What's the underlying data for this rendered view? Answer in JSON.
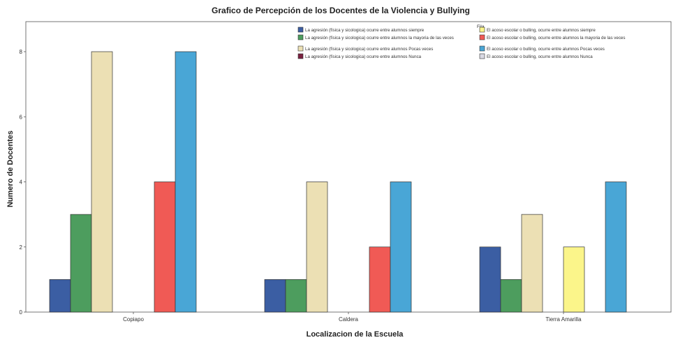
{
  "chart_data": {
    "type": "bar",
    "title": "Grafico de Percepción de los Docentes de la Violencia y Bullying",
    "xlabel": "Localizacion de la Escuela",
    "ylabel": "Numero de Docentes",
    "ylim": [
      0,
      8
    ],
    "yticks": [
      0,
      2,
      4,
      6,
      8
    ],
    "categories": [
      "Copiapo",
      "Caldera",
      "Tierra Amarilla"
    ],
    "legend_title": "Fila",
    "legend_position": "top-right",
    "grid": false,
    "series": [
      {
        "name": "La agresión (física y sicologica) ocurre entre alumnos siempre",
        "color": "#3b5ea3",
        "values": [
          1,
          1,
          2
        ]
      },
      {
        "name": "La agresión (física y sicologica) ocurre entre alumnos la mayoria de las veces",
        "color": "#4d9d5e",
        "values": [
          3,
          1,
          1
        ]
      },
      {
        "name": "La agresión (física y sicologica) ocurre entre alumnos Pocas veces",
        "color": "#ece0b4",
        "values": [
          8,
          4,
          3
        ]
      },
      {
        "name": "La agresión (física y sicologica) ocurre entre alumnos Nunca",
        "color": "#7a2140",
        "values": [
          0,
          0,
          0
        ]
      },
      {
        "name": "El acoso escolar o bulling, ocurre entre alumnos siempre",
        "color": "#fbf58a",
        "values": [
          0,
          0,
          2
        ]
      },
      {
        "name": "El acoso escolar o bulling, ocurre entre alumnos la mayoria de las veces",
        "color": "#f05a55",
        "values": [
          4,
          2,
          0
        ]
      },
      {
        "name": "El acoso escolar o bulling, ocurre entre alumnos Pocas veces",
        "color": "#49a6d6",
        "values": [
          8,
          4,
          4
        ]
      },
      {
        "name": "El acoso escolar o bulling, ocurre entre alumnos Nunca",
        "color": "#d9d9e3",
        "values": [
          0,
          0,
          0
        ]
      }
    ]
  }
}
